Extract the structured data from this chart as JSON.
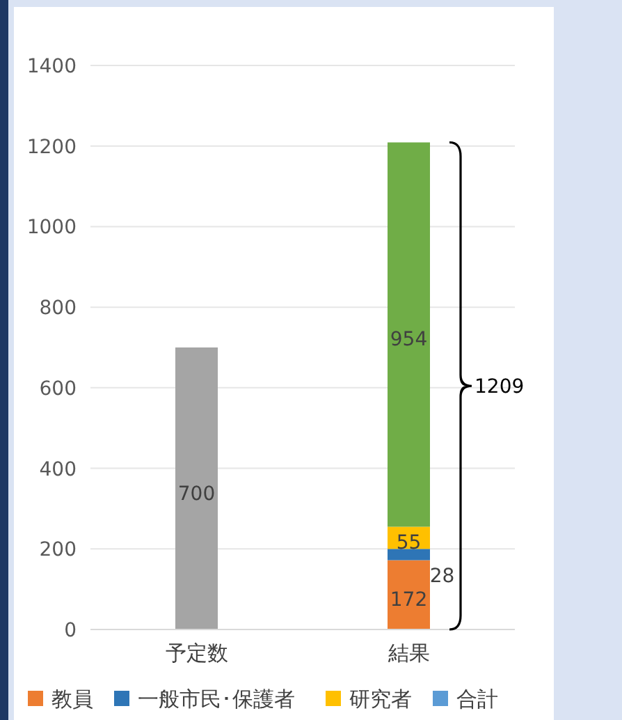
{
  "chart_data": {
    "type": "bar",
    "stacked": true,
    "categories": [
      "予定数",
      "結果"
    ],
    "series": [
      {
        "color": "#a5a5a5",
        "values": [
          700,
          null
        ]
      },
      {
        "name": "教員",
        "color": "#ed7d31",
        "values": [
          null,
          172
        ]
      },
      {
        "name": "一般市民･保護者",
        "color": "#2e75b6",
        "values": [
          null,
          28
        ]
      },
      {
        "name": "研究者",
        "color": "#ffc000",
        "values": [
          null,
          55
        ]
      },
      {
        "color": "#70ad47",
        "values": [
          null,
          954
        ]
      },
      {
        "name": "合計",
        "color": "#5b9bd5",
        "values": [
          null,
          null
        ]
      }
    ],
    "ylim": [
      0,
      1400
    ],
    "yticks": [
      0,
      200,
      400,
      600,
      800,
      1000,
      1200,
      1400
    ],
    "grid": "y",
    "data_labels": true,
    "legend": "bottom",
    "annotations": [
      "1209"
    ]
  }
}
